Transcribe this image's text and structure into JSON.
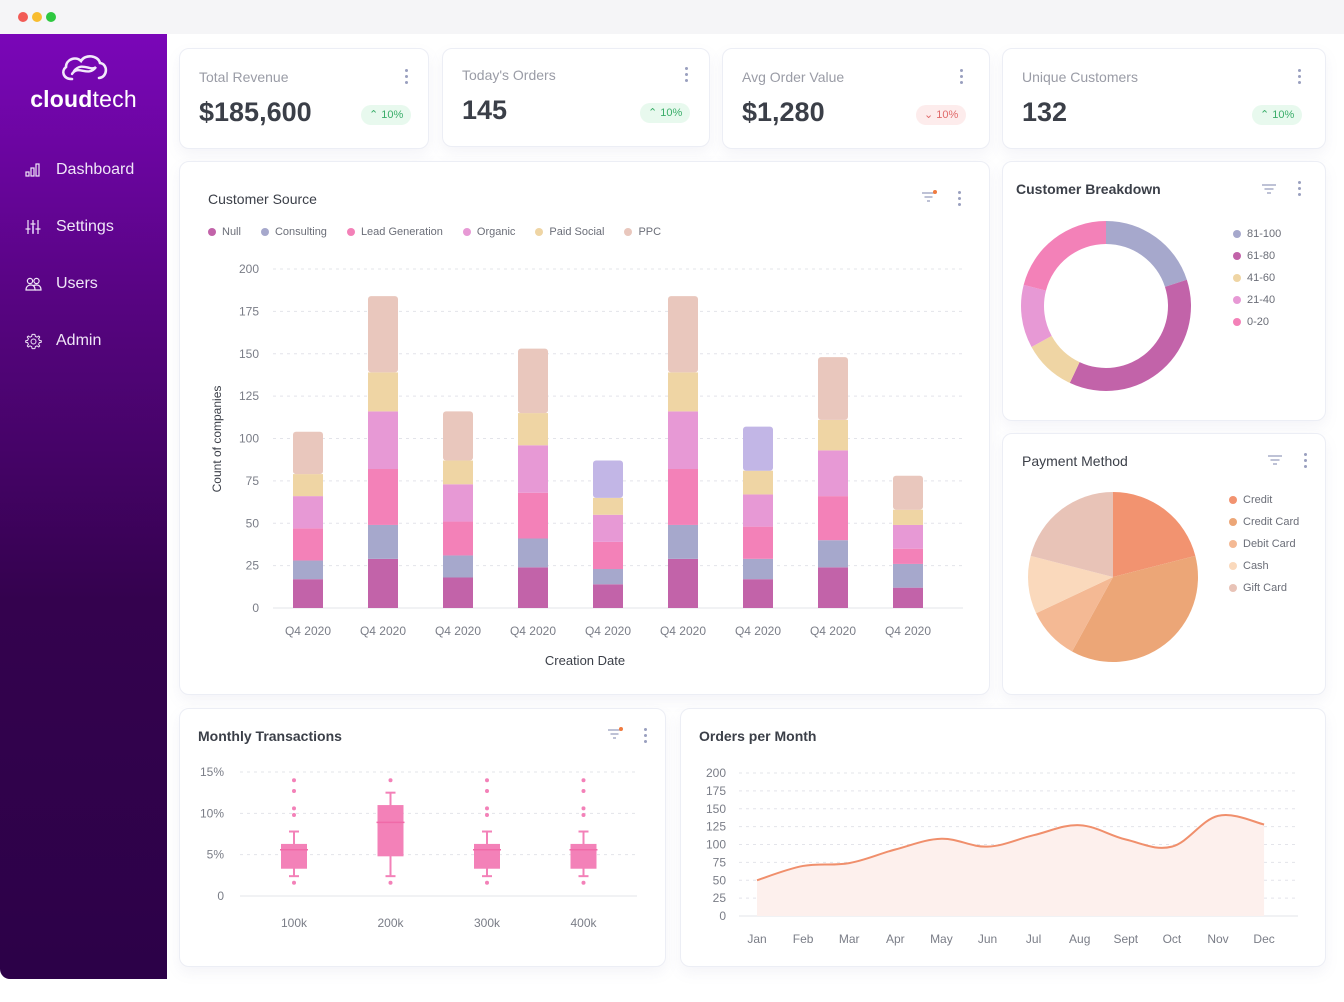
{
  "window": {
    "controls": [
      "close",
      "minimize",
      "maximize"
    ]
  },
  "sidebar": {
    "brand_bold": "cloud",
    "brand_light": "tech",
    "items": [
      {
        "label": "Dashboard",
        "icon": "bar-chart-icon"
      },
      {
        "label": "Settings",
        "icon": "sliders-icon"
      },
      {
        "label": "Users",
        "icon": "users-icon"
      },
      {
        "label": "Admin",
        "icon": "gear-icon"
      }
    ]
  },
  "kpis": [
    {
      "title": "Total Revenue",
      "value": "$185,600",
      "change": "10%",
      "trend": "up"
    },
    {
      "title": "Today's Orders",
      "value": "145",
      "change": "10%",
      "trend": "up"
    },
    {
      "title": "Avg Order Value",
      "value": "$1,280",
      "change": "10%",
      "trend": "down"
    },
    {
      "title": "Unique Customers",
      "value": "132",
      "change": "10%",
      "trend": "up"
    }
  ],
  "colors": {
    "accent": "#7a06b8",
    "up": "#3bae6a",
    "down": "#e06a6a",
    "filter_dot": "#f07b3f"
  },
  "chart_data": [
    {
      "id": "customer-source",
      "type": "bar",
      "stacked": true,
      "title": "Customer Source",
      "xlabel": "Creation Date",
      "ylabel": "Count of companies",
      "ylim": [
        0,
        200
      ],
      "yticks": [
        0,
        25,
        50,
        75,
        100,
        125,
        150,
        175,
        200
      ],
      "grid": true,
      "legend_position": "top-left",
      "categories": [
        "Q4 2020",
        "Q4 2020",
        "Q4 2020",
        "Q4 2020",
        "Q4 2020",
        "Q4 2020",
        "Q4 2020",
        "Q4 2020",
        "Q4 2020"
      ],
      "series": [
        {
          "name": "Null",
          "color": "#c263a9",
          "values": [
            17,
            29,
            18,
            24,
            14,
            29,
            17,
            24,
            12
          ]
        },
        {
          "name": "Consulting",
          "color": "#a6a8cc",
          "values": [
            11,
            20,
            13,
            17,
            9,
            20,
            12,
            16,
            14
          ]
        },
        {
          "name": "Lead Generation",
          "color": "#f381b8",
          "values": [
            19,
            33,
            20,
            27,
            16,
            33,
            19,
            26,
            9
          ]
        },
        {
          "name": "Organic",
          "color": "#e799d5",
          "values": [
            19,
            34,
            22,
            28,
            16,
            34,
            19,
            27,
            14
          ]
        },
        {
          "name": "Paid Social",
          "color": "#efd5a4",
          "values": [
            13,
            23,
            14,
            19,
            10,
            23,
            14,
            18,
            9
          ]
        },
        {
          "name": "PPC",
          "color": "#e9c7bd",
          "values": [
            25,
            45,
            29,
            38,
            22,
            45,
            26,
            37,
            20
          ]
        }
      ],
      "highlight_top_color": "#c2b6e6",
      "highlight_top_bars": [
        4,
        6
      ]
    },
    {
      "id": "customer-breakdown",
      "type": "pie",
      "donut": true,
      "title": "Customer Breakdown",
      "legend_position": "right",
      "categories": [
        "81-100",
        "61-80",
        "41-60",
        "21-40",
        "0-20"
      ],
      "values": [
        20,
        37,
        10,
        12,
        21
      ],
      "colors": [
        "#a6a8cc",
        "#c263a9",
        "#efd5a4",
        "#e799d5",
        "#f381b8"
      ]
    },
    {
      "id": "payment-method",
      "type": "pie",
      "title": "Payment Method",
      "legend_position": "right",
      "categories": [
        "Credit",
        "Credit Card",
        "Debit Card",
        "Cash",
        "Gift Card"
      ],
      "values": [
        21,
        37,
        10,
        11,
        21
      ],
      "colors": [
        "#f29370",
        "#eca677",
        "#f4b994",
        "#fad9bc",
        "#e8c3b7"
      ]
    },
    {
      "id": "monthly-transactions",
      "type": "box",
      "title": "Monthly Transactions",
      "ylim": [
        0,
        15
      ],
      "yticks": [
        "0",
        "5%",
        "10%",
        "15%"
      ],
      "ytick_values": [
        0,
        5,
        10,
        15
      ],
      "grid": true,
      "categories": [
        "100k",
        "200k",
        "300k",
        "400k"
      ],
      "color": "#f381b8",
      "boxes": [
        {
          "min": 2.4,
          "q1": 3.3,
          "median": 5.6,
          "q3": 6.3,
          "max": 7.8,
          "outliers": [
            1.6,
            9.8,
            10.6,
            12.7,
            14.0
          ]
        },
        {
          "min": 2.4,
          "q1": 4.8,
          "median": 8.9,
          "q3": 11.0,
          "max": 12.5,
          "outliers": [
            1.6,
            14.0
          ]
        },
        {
          "min": 2.4,
          "q1": 3.3,
          "median": 5.6,
          "q3": 6.3,
          "max": 7.8,
          "outliers": [
            1.6,
            9.8,
            10.6,
            12.7,
            14.0
          ]
        },
        {
          "min": 2.4,
          "q1": 3.3,
          "median": 5.6,
          "q3": 6.3,
          "max": 7.8,
          "outliers": [
            1.6,
            9.8,
            10.6,
            12.7,
            14.0
          ]
        }
      ]
    },
    {
      "id": "orders-per-month",
      "type": "area",
      "title": "Orders per Month",
      "ylim": [
        0,
        200
      ],
      "yticks": [
        0,
        25,
        50,
        75,
        100,
        125,
        150,
        175,
        200
      ],
      "grid": true,
      "categories": [
        "Jan",
        "Feb",
        "Mar",
        "Apr",
        "May",
        "Jun",
        "Jul",
        "Aug",
        "Sept",
        "Oct",
        "Nov",
        "Dec"
      ],
      "values": [
        50,
        70,
        74,
        93,
        108,
        97,
        113,
        127,
        107,
        97,
        140,
        128
      ],
      "line_color": "#f08f6c",
      "fill_color": "#fdf0ed"
    }
  ]
}
